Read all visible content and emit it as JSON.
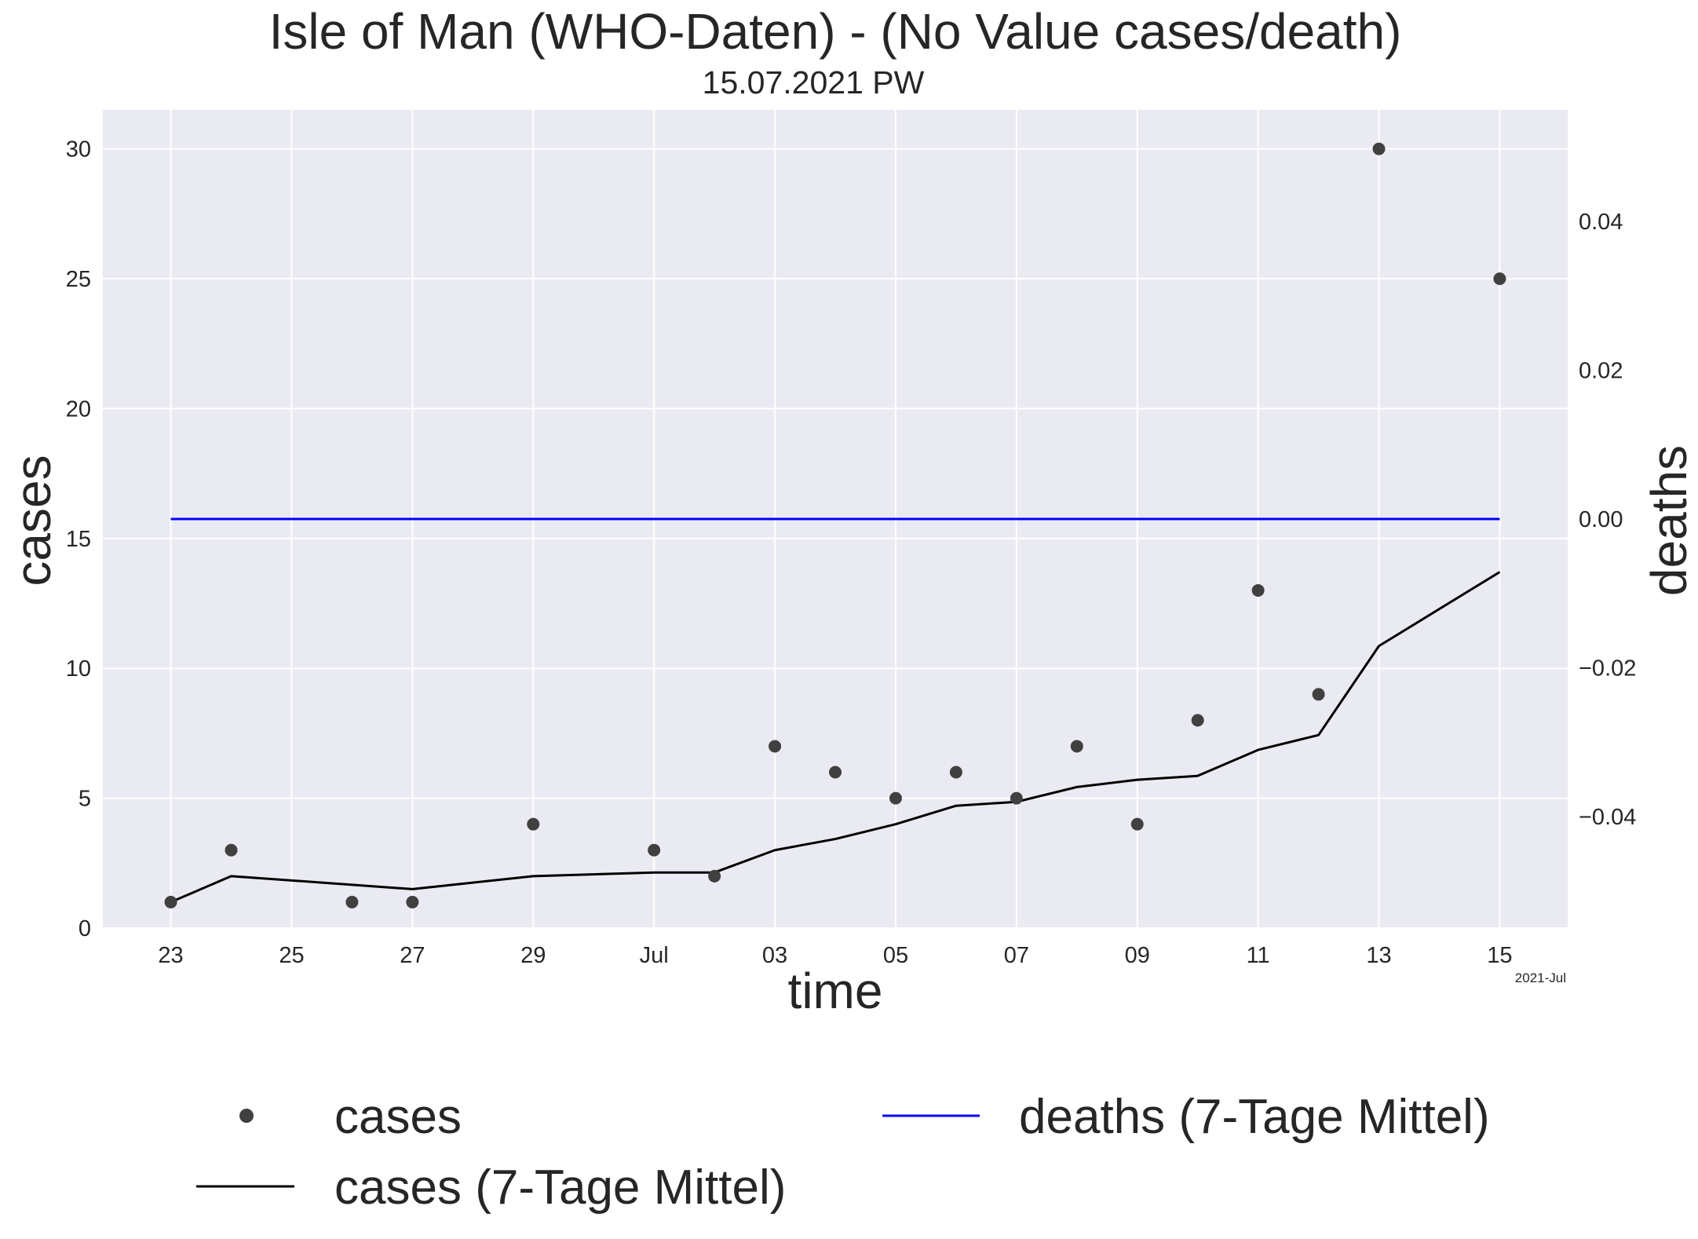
{
  "chart_data": {
    "type": "line",
    "title": "Isle of Man (WHO-Daten) - (No Value cases/death)",
    "subtitle": "15.07.2021 PW",
    "xlabel": "time",
    "ylabel": "cases",
    "y2label": "deaths",
    "x_offset_label": "2021-Jul",
    "x_tick_labels": [
      "23",
      "25",
      "27",
      "29",
      "Jul",
      "03",
      "05",
      "07",
      "09",
      "11",
      "13",
      "15"
    ],
    "x_ticks": [
      "2021-06-23",
      "2021-06-25",
      "2021-06-27",
      "2021-06-29",
      "2021-07-01",
      "2021-07-03",
      "2021-07-05",
      "2021-07-07",
      "2021-07-09",
      "2021-07-11",
      "2021-07-13",
      "2021-07-15"
    ],
    "xlim": [
      "2021-06-21T21:00",
      "2021-07-16T03:00"
    ],
    "ylim": [
      0,
      31.5
    ],
    "y2lim": [
      -0.055,
      0.055
    ],
    "y_ticks": [
      0,
      5,
      10,
      15,
      20,
      25,
      30
    ],
    "y2_ticks": [
      -0.04,
      -0.02,
      0.0,
      0.02,
      0.04
    ],
    "y2_tick_labels": [
      "−0.04",
      "−0.02",
      "0.00",
      "0.02",
      "0.04"
    ],
    "grid": true,
    "legend_position": "bottom",
    "colors": {
      "plot_bg": "#eaeaf2",
      "grid": "#ffffff",
      "cases": "#404040",
      "cases_avg": "#000000",
      "deaths_avg": "#0000ff",
      "deaths_label": "#0000ff",
      "text": "#262626"
    },
    "series": [
      {
        "name": "cases",
        "kind": "scatter",
        "axis": "left",
        "x": [
          "2021-06-23",
          "2021-06-24",
          "2021-06-26",
          "2021-06-27",
          "2021-06-29",
          "2021-07-01",
          "2021-07-02",
          "2021-07-03",
          "2021-07-04",
          "2021-07-05",
          "2021-07-06",
          "2021-07-07",
          "2021-07-08",
          "2021-07-09",
          "2021-07-10",
          "2021-07-11",
          "2021-07-12",
          "2021-07-13",
          "2021-07-15"
        ],
        "values": [
          1,
          3,
          1,
          1,
          4,
          3,
          2,
          7,
          6,
          5,
          6,
          5,
          7,
          4,
          8,
          13,
          9,
          30,
          25
        ]
      },
      {
        "name": "cases (7-Tage Mittel)",
        "kind": "line",
        "axis": "left",
        "x": [
          "2021-06-23",
          "2021-06-24",
          "2021-06-27",
          "2021-06-29",
          "2021-07-01",
          "2021-07-02",
          "2021-07-03",
          "2021-07-04",
          "2021-07-05",
          "2021-07-06",
          "2021-07-07",
          "2021-07-08",
          "2021-07-09",
          "2021-07-10",
          "2021-07-11",
          "2021-07-12",
          "2021-07-13",
          "2021-07-15"
        ],
        "values": [
          1.0,
          2.0,
          1.5,
          2.0,
          2.14,
          2.14,
          3.0,
          3.43,
          4.0,
          4.71,
          4.86,
          5.43,
          5.71,
          5.86,
          6.86,
          7.43,
          10.86,
          13.71
        ]
      },
      {
        "name": "deaths (7-Tage Mittel)",
        "kind": "line",
        "axis": "right",
        "x": [
          "2021-06-23",
          "2021-07-15"
        ],
        "values": [
          0,
          0
        ]
      }
    ]
  }
}
